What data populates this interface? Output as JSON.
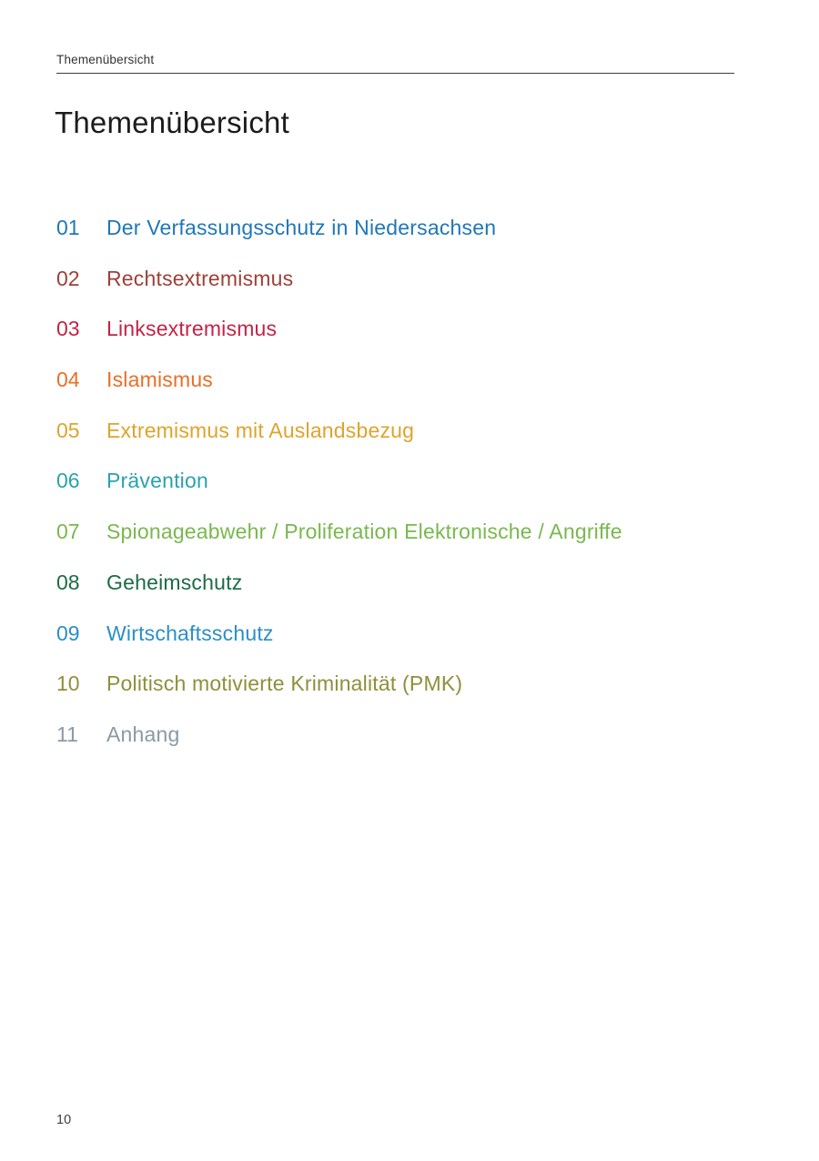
{
  "page": {
    "running_header": "Themenübersicht",
    "title": "Themenübersicht",
    "page_number": "10"
  },
  "toc": {
    "items": [
      {
        "number": "01",
        "label": "Der Verfassungsschutz in Niedersachsen",
        "color": "#1f77b8"
      },
      {
        "number": "02",
        "label": "Rechtsextremismus",
        "color": "#9e4038"
      },
      {
        "number": "03",
        "label": "Linksextremismus",
        "color": "#c32347"
      },
      {
        "number": "04",
        "label": "Islamismus",
        "color": "#e96f26"
      },
      {
        "number": "05",
        "label": "Extremismus mit Auslandsbezug",
        "color": "#dda42d"
      },
      {
        "number": "06",
        "label": "Prävention",
        "color": "#2aa2ae"
      },
      {
        "number": "07",
        "label": "Spionageabwehr / Proliferation Elektronische / Angriffe",
        "color": "#79b84e"
      },
      {
        "number": "08",
        "label": "Geheimschutz",
        "color": "#1d6b45"
      },
      {
        "number": "09",
        "label": "Wirtschaftsschutz",
        "color": "#2b8fc6"
      },
      {
        "number": "10",
        "label": "Politisch motivierte Kriminalität (PMK)",
        "color": "#8f8f3c"
      },
      {
        "number": "11",
        "label": "Anhang",
        "color": "#8a99a6"
      }
    ]
  }
}
